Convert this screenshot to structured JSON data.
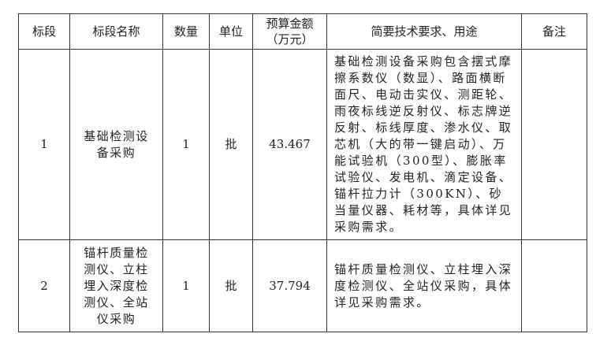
{
  "headers": [
    "标段",
    "标段名称",
    "数量",
    "单位",
    "预算金额（万元）",
    "简要技术要求、用途",
    "备注"
  ],
  "rows": [
    {
      "section": "1",
      "name": "基础检测设备采购",
      "quantity": "1",
      "unit": "批",
      "budget": "43.467",
      "description": "基础检测设备采购包含摆式摩擦系数仪（数显）、路面横断面尺、电动击实仪、测距轮、雨夜标线逆反射仪、标志牌逆反射、标线厚度、渗水仪、取芯机（大的带一键启动）、万能试验机（300型）、膨胀率试验仪、发电机、滴定设备、锚杆拉力计（300KN）、砂当量仪器、耗材等，具体详见采购需求。",
      "remarks": ""
    },
    {
      "section": "2",
      "name": "锚杆质量检测仪、立柱埋入深度检测仪、全站仪采购",
      "quantity": "1",
      "unit": "批",
      "budget": "37.794",
      "description": "锚杆质量检测仪、立柱埋入深度检测仪、全站仪采购，具体详见采购需求。",
      "remarks": ""
    }
  ]
}
